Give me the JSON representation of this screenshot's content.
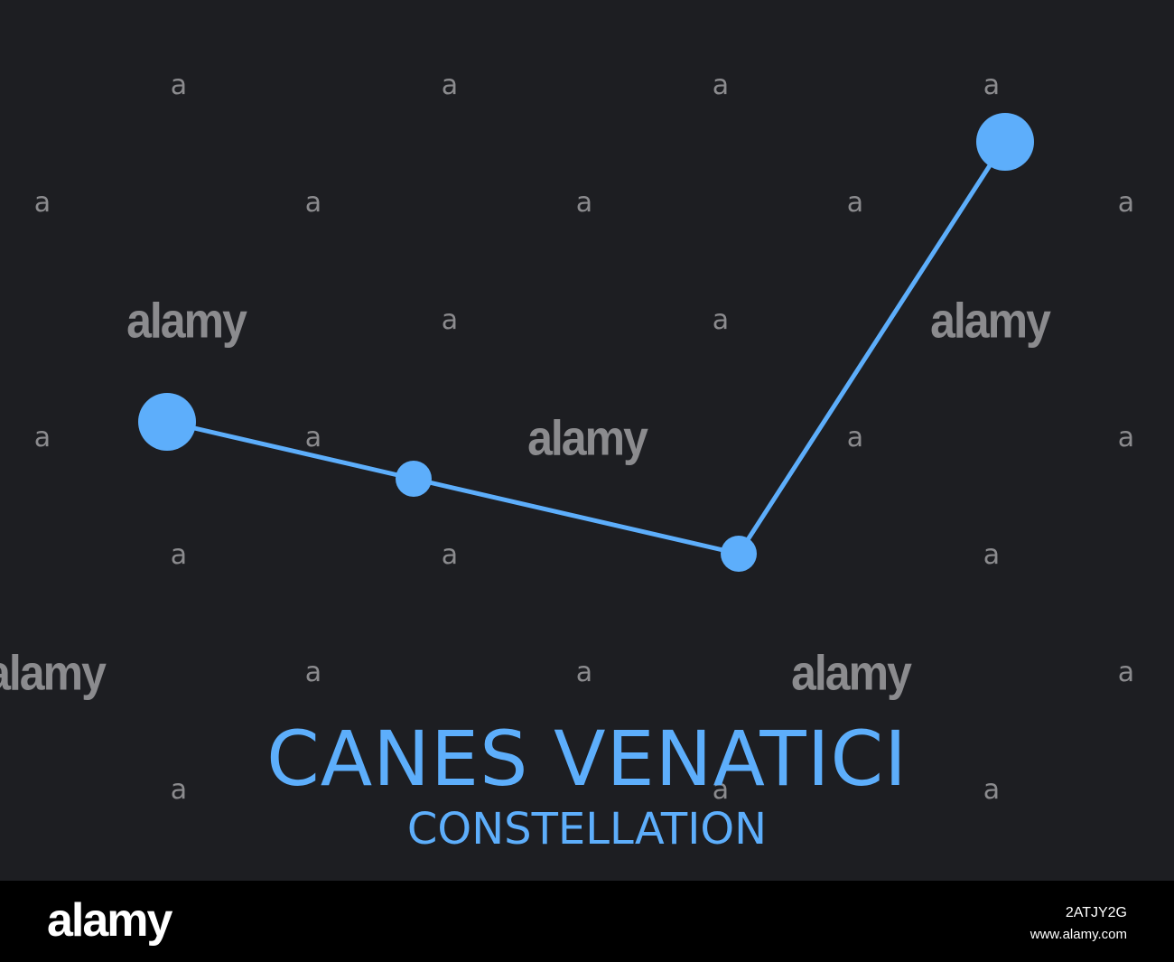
{
  "title": "CANES VENATICI",
  "subtitle": "CONSTELLATION",
  "colors": {
    "background": "#1d1e22",
    "star": "#5daefb",
    "line": "#5daefb",
    "title": "#5daefb",
    "watermark": "#8b8b8e",
    "footer_bg": "#000000",
    "footer_text": "#ffffff"
  },
  "constellation": {
    "stars": [
      {
        "id": "star-1",
        "magnitude_class": "bright"
      },
      {
        "id": "star-2",
        "magnitude_class": "medium"
      },
      {
        "id": "star-3",
        "magnitude_class": "medium"
      },
      {
        "id": "star-4",
        "magnitude_class": "bright"
      }
    ],
    "lines": [
      {
        "from": "star-1",
        "to": "star-2"
      },
      {
        "from": "star-2",
        "to": "star-3"
      },
      {
        "from": "star-3",
        "to": "star-4"
      }
    ]
  },
  "watermark": {
    "small_glyph": "a",
    "large_text": "alamy"
  },
  "footer": {
    "logo": "alamy",
    "image_id": "2ATJY2G",
    "url": "www.alamy.com"
  }
}
